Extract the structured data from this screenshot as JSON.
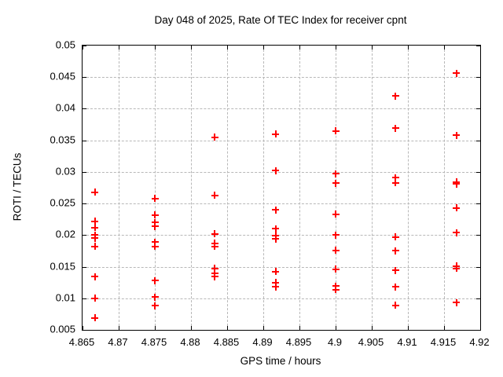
{
  "colors": {
    "background": "#ffffff",
    "plot_border": "#000000",
    "grid": "#b8b8b8",
    "marker": "#ff0000",
    "text": "#000000"
  },
  "chart_data": {
    "type": "scatter",
    "title": "Day 048 of 2025, Rate Of TEC Index for receiver cpnt",
    "xlabel": "GPS time / hours",
    "ylabel": "ROTI / TECUs",
    "xlim": [
      4.865,
      4.92
    ],
    "ylim": [
      0.005,
      0.05
    ],
    "xticks": [
      4.865,
      4.87,
      4.875,
      4.88,
      4.885,
      4.89,
      4.895,
      4.9,
      4.905,
      4.91,
      4.915,
      4.92
    ],
    "xtick_labels": [
      "4.865",
      "4.87",
      "4.875",
      "4.88",
      "4.885",
      "4.89",
      "4.895",
      "4.9",
      "4.905",
      "4.91",
      "4.915",
      "4.92"
    ],
    "yticks": [
      0.005,
      0.01,
      0.015,
      0.02,
      0.025,
      0.03,
      0.035,
      0.04,
      0.045,
      0.05
    ],
    "ytick_labels": [
      "0.005",
      "0.01",
      "0.015",
      "0.02",
      "0.025",
      "0.03",
      "0.035",
      "0.04",
      "0.045",
      "0.05"
    ],
    "grid": true,
    "legend": "none",
    "marker_style": "plus",
    "series": [
      {
        "name": "ROTI",
        "color": "#ff0000",
        "points": [
          [
            4.8667,
            0.0268
          ],
          [
            4.8667,
            0.0222
          ],
          [
            4.8667,
            0.0212
          ],
          [
            4.8667,
            0.02
          ],
          [
            4.8667,
            0.0195
          ],
          [
            4.8667,
            0.0182
          ],
          [
            4.8667,
            0.0134
          ],
          [
            4.8667,
            0.01
          ],
          [
            4.8667,
            0.0069
          ],
          [
            4.875,
            0.0258
          ],
          [
            4.875,
            0.0232
          ],
          [
            4.875,
            0.022
          ],
          [
            4.875,
            0.0214
          ],
          [
            4.875,
            0.0189
          ],
          [
            4.875,
            0.0182
          ],
          [
            4.875,
            0.0128
          ],
          [
            4.875,
            0.0102
          ],
          [
            4.875,
            0.0088
          ],
          [
            4.8833,
            0.0355
          ],
          [
            4.8833,
            0.0263
          ],
          [
            4.8833,
            0.0202
          ],
          [
            4.8833,
            0.0187
          ],
          [
            4.8833,
            0.0182
          ],
          [
            4.8833,
            0.0147
          ],
          [
            4.8833,
            0.014
          ],
          [
            4.8833,
            0.0134
          ],
          [
            4.8917,
            0.036
          ],
          [
            4.8917,
            0.0302
          ],
          [
            4.8917,
            0.024
          ],
          [
            4.8917,
            0.021
          ],
          [
            4.8917,
            0.0199
          ],
          [
            4.8917,
            0.0194
          ],
          [
            4.8917,
            0.0142
          ],
          [
            4.8917,
            0.0125
          ],
          [
            4.8917,
            0.0118
          ],
          [
            4.9,
            0.0365
          ],
          [
            4.9,
            0.0297
          ],
          [
            4.9,
            0.0282
          ],
          [
            4.9,
            0.0233
          ],
          [
            4.9,
            0.02
          ],
          [
            4.9,
            0.0176
          ],
          [
            4.9,
            0.0146
          ],
          [
            4.9,
            0.0119
          ],
          [
            4.9,
            0.0114
          ],
          [
            4.9083,
            0.042
          ],
          [
            4.9083,
            0.0369
          ],
          [
            4.9083,
            0.0291
          ],
          [
            4.9083,
            0.0283
          ],
          [
            4.9083,
            0.0197
          ],
          [
            4.9083,
            0.0175
          ],
          [
            4.9083,
            0.0144
          ],
          [
            4.9083,
            0.0118
          ],
          [
            4.9083,
            0.0089
          ],
          [
            4.9167,
            0.0456
          ],
          [
            4.9167,
            0.0358
          ],
          [
            4.9167,
            0.0284
          ],
          [
            4.9167,
            0.0281
          ],
          [
            4.9167,
            0.0243
          ],
          [
            4.9167,
            0.0204
          ],
          [
            4.9167,
            0.0151
          ],
          [
            4.9167,
            0.0147
          ],
          [
            4.9167,
            0.0093
          ]
        ]
      }
    ]
  }
}
